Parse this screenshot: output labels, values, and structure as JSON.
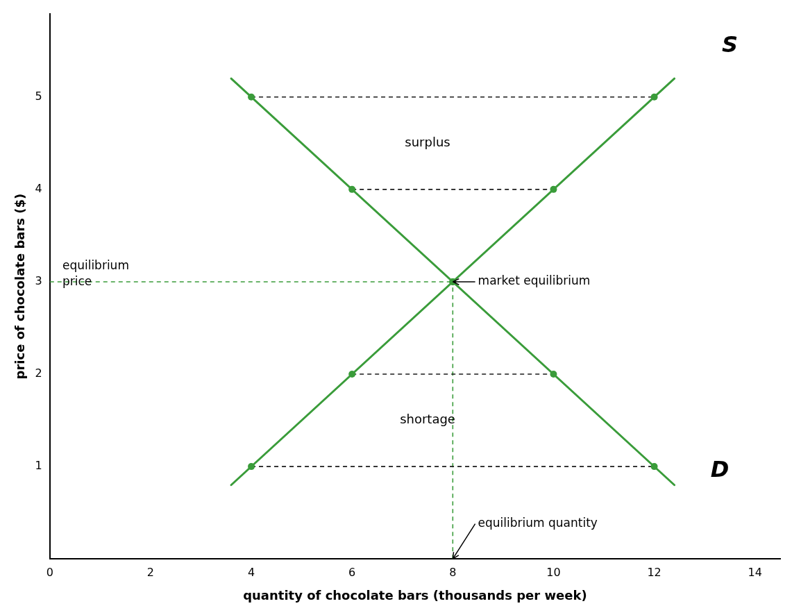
{
  "chart_data": {
    "type": "line",
    "xlabel": "quantity of chocolate bars (thousands per week)",
    "ylabel": "price of chocolate bars ($)",
    "xlim": [
      0,
      14.5
    ],
    "ylim": [
      0,
      5.9
    ],
    "xticks": [
      0,
      2,
      4,
      6,
      8,
      10,
      12,
      14
    ],
    "yticks": [
      1,
      2,
      3,
      4,
      5
    ],
    "grid": false,
    "series": [
      {
        "type": "line",
        "color": "#3a9c3a",
        "line_style": "solid",
        "marker": "none",
        "x": [
          3.6,
          12.4
        ],
        "values": [
          0.8,
          5.2
        ]
      },
      {
        "type": "line",
        "color": "#3a9c3a",
        "line_style": "solid",
        "marker": "none",
        "x": [
          3.6,
          12.4
        ],
        "values": [
          5.2,
          0.8
        ]
      },
      {
        "type": "scatter",
        "color": "#3a9c3a",
        "marker": "circle",
        "x": [
          4,
          6,
          8,
          10,
          12
        ],
        "values": [
          1,
          2,
          3,
          4,
          5
        ]
      },
      {
        "type": "scatter",
        "color": "#3a9c3a",
        "marker": "circle",
        "x": [
          4,
          6,
          8,
          10,
          12
        ],
        "values": [
          5,
          4,
          3,
          2,
          1
        ]
      },
      {
        "type": "line",
        "color": "#1a1a1a",
        "line_style": "dashed",
        "marker": "none",
        "x": [
          4,
          12
        ],
        "values": [
          5,
          5
        ]
      },
      {
        "type": "line",
        "color": "#1a1a1a",
        "line_style": "dashed",
        "marker": "none",
        "x": [
          6,
          10
        ],
        "values": [
          4,
          4
        ]
      },
      {
        "type": "line",
        "color": "#1a1a1a",
        "line_style": "dashed",
        "marker": "none",
        "x": [
          6,
          10
        ],
        "values": [
          2,
          2
        ]
      },
      {
        "type": "line",
        "color": "#1a1a1a",
        "line_style": "dashed",
        "marker": "none",
        "x": [
          4,
          12
        ],
        "values": [
          1,
          1
        ]
      },
      {
        "type": "line",
        "color": "#3a9c3a",
        "line_style": "dashed",
        "marker": "none",
        "x": [
          8,
          8
        ],
        "values": [
          0,
          3
        ]
      },
      {
        "type": "line",
        "color": "#3a9c3a",
        "line_style": "dashed",
        "marker": "none",
        "x": [
          0,
          8
        ],
        "values": [
          3,
          3
        ]
      }
    ],
    "annotations": [
      {
        "text": "S",
        "x": 13.5,
        "y": 5.55
      },
      {
        "text": "D",
        "x": 13.3,
        "y": 0.95
      },
      {
        "text": "surplus",
        "x": 7.5,
        "y": 4.5
      },
      {
        "text": "shortage",
        "x": 7.5,
        "y": 1.5
      },
      {
        "text": "equilibrium\nprice",
        "x": 0.25,
        "y": 3.08
      },
      {
        "text": "equilibrium quantity",
        "x": 8.5,
        "y": 0.38,
        "arrow_x": 8.0,
        "arrow_y": 0
      },
      {
        "text": "market equilibrium",
        "x": 8.5,
        "y": 3.0,
        "arrow_x": 8.0,
        "arrow_y": 3.0
      }
    ]
  }
}
